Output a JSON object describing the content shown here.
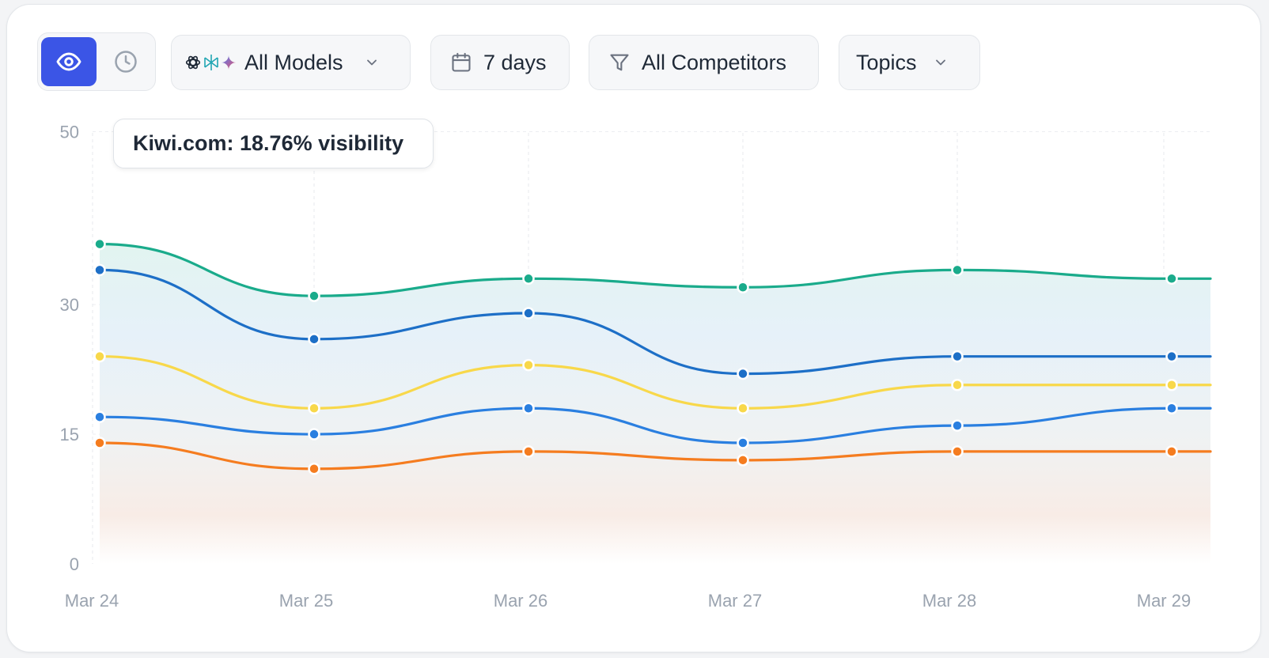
{
  "toolbar": {
    "view_toggle": {
      "active": "eye-icon",
      "inactive": "clock-icon"
    },
    "models_label": "All Models",
    "model_icons": [
      "openai-icon",
      "perplexity-icon",
      "gemini-icon"
    ],
    "days_label": "7 days",
    "competitors_label": "All Competitors",
    "topics_label": "Topics"
  },
  "tooltip": {
    "text": "Kiwi.com: 18.76% visibility"
  },
  "colors": {
    "accent": "#3b55e6",
    "teal": "#1aab8b",
    "dark_blue": "#1d6fc7",
    "yellow": "#f8d84a",
    "blue": "#2a7fe0",
    "orange": "#f57c1f"
  },
  "chart_data": {
    "type": "area",
    "categories": [
      "Mar 24",
      "Mar 25",
      "Mar 26",
      "Mar 27",
      "Mar 28",
      "Mar 29"
    ],
    "y_ticks": [
      0,
      15,
      30,
      50
    ],
    "ylim": [
      0,
      50
    ],
    "grid": true,
    "series": [
      {
        "color": "#1aab8b",
        "values": [
          37,
          31,
          33,
          32,
          34,
          33
        ]
      },
      {
        "color": "#1d6fc7",
        "values": [
          34,
          26,
          29,
          22,
          24,
          24
        ]
      },
      {
        "color": "#f8d84a",
        "values": [
          24,
          18,
          23,
          18,
          20.7,
          20.7
        ]
      },
      {
        "color": "#2a7fe0",
        "values": [
          17,
          15,
          18,
          14,
          16,
          18
        ]
      },
      {
        "color": "#f57c1f",
        "values": [
          14,
          11,
          13,
          12,
          13,
          13
        ]
      }
    ]
  }
}
